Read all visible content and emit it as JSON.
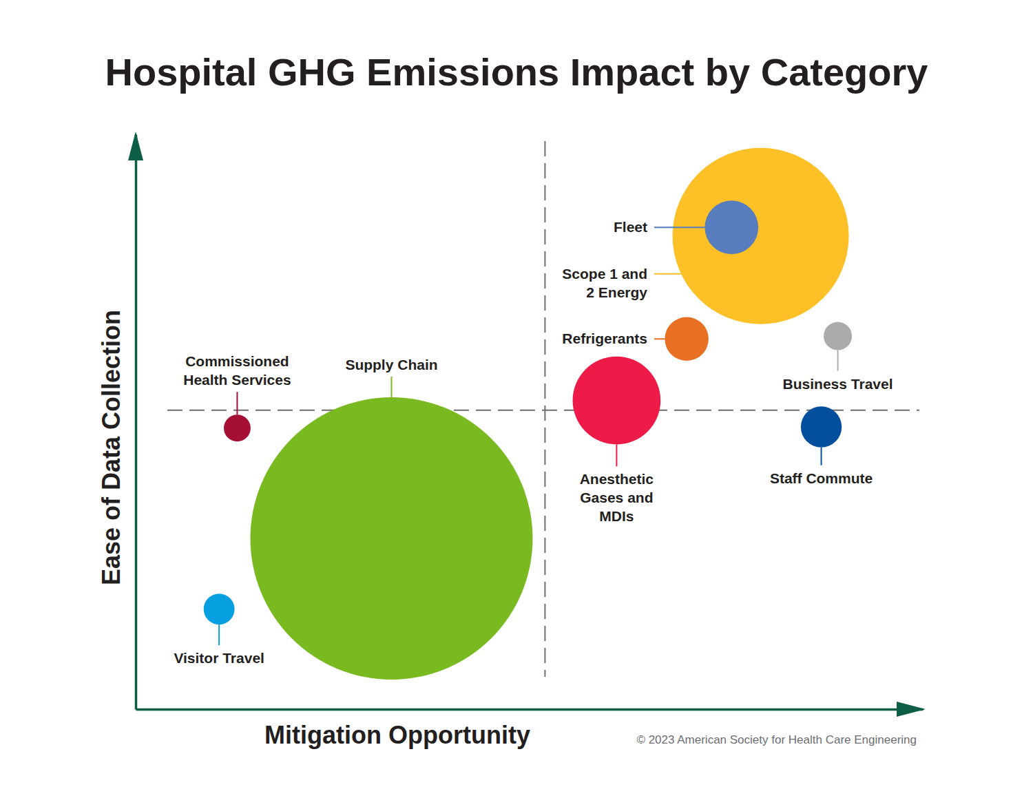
{
  "chart_data": {
    "type": "bubble",
    "title": "Hospital GHG Emissions Impact by Category",
    "x_label": "Mitigation Opportunity",
    "y_label": "Ease of Data Collection",
    "source": "© 2023 American Society for Health Care Engineering",
    "tick_labels": false,
    "xlim": [
      0,
      10
    ],
    "ylim": [
      0,
      10
    ],
    "size_lim": [
      0,
      100
    ],
    "quadrant_lines": {
      "x": 5.2,
      "y": 5.2
    },
    "categories": [
      [
        "Commissioned",
        "Health Services"
      ],
      [
        "Supply Chain"
      ],
      [
        "Visitor Travel"
      ],
      [
        "Scope 1 and",
        "2 Energy"
      ],
      [
        "Fleet"
      ],
      [
        "Refrigerants"
      ],
      [
        "Anesthetic",
        "Gases and",
        "MDIs"
      ],
      [
        "Business Travel"
      ],
      [
        "Staff Commute"
      ]
    ],
    "x": [
      1.29,
      3.25,
      1.06,
      7.94,
      7.57,
      7.0,
      6.11,
      8.92,
      8.71
    ],
    "values": [
      4.89,
      2.97,
      1.74,
      8.23,
      8.38,
      6.44,
      5.37,
      6.49,
      4.91
    ],
    "sizes": [
      0.9,
      100,
      1.2,
      39,
      3.6,
      2.4,
      9.7,
      1.0,
      2.1
    ],
    "colors": [
      "#a50f34",
      "#7aba21",
      "#069fdf",
      "#fdc127",
      "#577dbf",
      "#e87022",
      "#ee1a47",
      "#aaabad",
      "#034f9e"
    ]
  }
}
